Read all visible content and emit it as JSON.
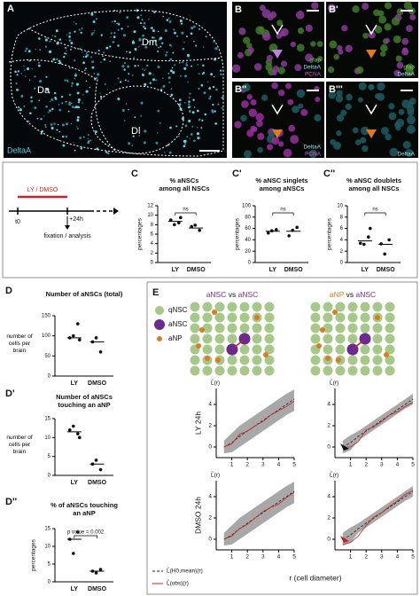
{
  "panel_a": {
    "label": "A",
    "regions": [
      "Dm",
      "Da",
      "Dl"
    ],
    "stain": "DeltaA"
  },
  "panel_b": [
    {
      "label": "B",
      "legend": [
        "gfap",
        "DeltaA",
        "PCNA"
      ]
    },
    {
      "label": "B'",
      "legend": [
        "gfap",
        "DeltaA"
      ]
    },
    {
      "label": "B''",
      "legend": [
        "DeltaA",
        "PCNA"
      ]
    },
    {
      "label": "B'''",
      "legend": [
        "DeltaA"
      ]
    }
  ],
  "timeline": {
    "treatment": "LY / DMSO",
    "start": "t0",
    "end": "+24h",
    "readout": "fixation / analysis"
  },
  "dot_plots": [
    {
      "label": "C",
      "title": [
        "% aNSCs",
        "among all NSCs"
      ],
      "ylabel": "percentages",
      "ylim": [
        0,
        12
      ],
      "yticks": [
        0,
        2,
        4,
        6,
        8,
        10,
        12
      ],
      "categories": [
        "LY",
        "DMSO"
      ],
      "groups": [
        [
          9,
          8.4,
          8,
          9.5
        ],
        [
          7.6,
          6.8,
          7.9
        ]
      ],
      "centers": [
        8.7,
        7.3
      ],
      "annotation": "ns"
    },
    {
      "label": "C'",
      "title": [
        "% aNSC singlets",
        "among aNSCs"
      ],
      "ylabel": "percentages",
      "ylim": [
        0,
        100
      ],
      "yticks": [
        0,
        20,
        40,
        60,
        80,
        100
      ],
      "categories": [
        "LY",
        "DMSO"
      ],
      "groups": [
        [
          52,
          58,
          56
        ],
        [
          47,
          62,
          57
        ]
      ],
      "centers": [
        55,
        55
      ],
      "annotation": "ns"
    },
    {
      "label": "C''",
      "title": [
        "% aNSC doublets",
        "among all NSCs"
      ],
      "ylabel": "percentages",
      "ylim": [
        0,
        10
      ],
      "yticks": [
        0,
        2,
        4,
        6,
        8,
        10
      ],
      "categories": [
        "LY",
        "DMSO"
      ],
      "groups": [
        [
          3.4,
          4.5,
          3.2,
          6
        ],
        [
          3.3,
          4,
          1.5
        ]
      ],
      "centers": [
        3.8,
        3.2
      ],
      "annotation": "ns"
    },
    {
      "label": "D",
      "title": [
        "Number of aNSCs (total)"
      ],
      "ylabel": "number of cells per brain",
      "ylim": [
        0,
        150
      ],
      "yticks": [
        0,
        50,
        100,
        150
      ],
      "categories": [
        "LY",
        "DMSO"
      ],
      "groups": [
        [
          95,
          130,
          100,
          90
        ],
        [
          85,
          60,
          95
        ]
      ],
      "centers": [
        95,
        85
      ]
    },
    {
      "label": "D'",
      "title": [
        "Number of aNSCs",
        "touching an aNP"
      ],
      "ylabel": "number of cells per brain",
      "ylim": [
        0,
        15
      ],
      "yticks": [
        0,
        5,
        10,
        15
      ],
      "categories": [
        "LY",
        "DMSO"
      ],
      "groups": [
        [
          12,
          11,
          13,
          10
        ],
        [
          3,
          1.5,
          4
        ]
      ],
      "centers": [
        11.5,
        3
      ]
    },
    {
      "label": "D''",
      "title": [
        "% of aNSCs touching",
        "an aNP"
      ],
      "ylabel": "percentages",
      "ylim": [
        0,
        15
      ],
      "yticks": [
        0,
        5,
        10,
        15
      ],
      "categories": [
        "LY",
        "DMSO"
      ],
      "groups": [
        [
          12,
          14,
          8
        ],
        [
          3,
          3.5,
          2.5
        ]
      ],
      "centers": [
        12,
        3
      ],
      "annotation": "p value = 0.002"
    }
  ],
  "panel_e": {
    "label": "E",
    "schemes": [
      [
        "aNSC",
        " vs ",
        "aNSC"
      ],
      [
        "aNP",
        " vs ",
        "aNSC"
      ]
    ],
    "legend": [
      "qNSC",
      "aNSC",
      "aNP"
    ],
    "row_labels": [
      "LY 24h",
      "DMSO 24h"
    ],
    "ylabel": "L̂(r)",
    "xlabel": "r (cell diameter)",
    "xlim": [
      0,
      5
    ],
    "xticks": [
      1,
      2,
      3,
      4,
      5
    ],
    "ylim": [
      -1,
      5.5
    ],
    "yticks": [
      0,
      2,
      4
    ],
    "line_legend": [
      "L̂(H0,mean)(r)",
      "L̂(obs)(r)"
    ],
    "x": [
      0.5,
      1,
      1.5,
      2,
      2.5,
      3,
      3.5,
      4,
      4.5,
      5
    ],
    "plots": [
      {
        "mean": [
          0,
          0.4,
          1,
          1.5,
          2,
          2.5,
          3,
          3.5,
          4,
          4.5
        ],
        "lower": [
          -0.6,
          -0.5,
          0,
          0.5,
          1,
          1.5,
          2,
          2.5,
          3,
          3.4
        ],
        "upper": [
          0.6,
          1.3,
          2,
          2.5,
          3,
          3.5,
          4,
          4.5,
          5,
          5.4
        ],
        "observed": [
          0,
          0.3,
          1.2,
          1.5,
          2,
          2.4,
          3,
          3.4,
          3.8,
          4.3
        ]
      },
      {
        "mean": [
          0,
          0.4,
          1,
          1.5,
          2,
          2.5,
          3,
          3.5,
          4,
          4.5
        ],
        "lower": [
          -0.6,
          -0.3,
          0.6,
          1.1,
          1.6,
          2.1,
          2.6,
          3.1,
          3.6,
          4
        ],
        "upper": [
          0.6,
          1.1,
          1.5,
          2,
          2.5,
          3,
          3.5,
          4,
          4.5,
          5
        ],
        "observed": [
          0,
          0,
          0.5,
          1.6,
          1.9,
          2.4,
          3,
          3.3,
          3.8,
          4.2
        ]
      },
      {
        "mean": [
          0,
          0.4,
          1,
          1.5,
          2,
          2.5,
          3,
          3.5,
          4,
          4.5
        ],
        "lower": [
          -0.6,
          -0.5,
          0,
          0.5,
          1,
          1.5,
          2,
          2.5,
          3,
          3.4
        ],
        "upper": [
          0.6,
          1.3,
          2,
          2.5,
          3,
          3.5,
          4,
          4.5,
          5,
          5.4
        ],
        "observed": [
          0,
          0.3,
          1,
          1.4,
          2,
          2.6,
          3,
          3.3,
          3.9,
          4.4
        ]
      },
      {
        "mean": [
          0,
          0.4,
          1,
          1.5,
          2,
          2.5,
          3,
          3.5,
          4,
          4.5
        ],
        "lower": [
          -0.6,
          -0.3,
          0.6,
          1.1,
          1.6,
          2.1,
          2.6,
          3.1,
          3.6,
          4
        ],
        "upper": [
          0.6,
          1.1,
          1.5,
          2,
          2.5,
          3,
          3.5,
          4,
          4.5,
          5
        ],
        "observed": [
          -0.5,
          -0.3,
          0.3,
          1.3,
          2.1,
          2.5,
          3.1,
          3.6,
          4.2,
          4.6
        ]
      }
    ]
  }
}
